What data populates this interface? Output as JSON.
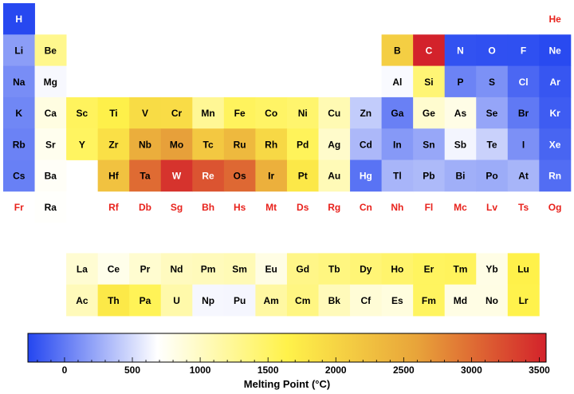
{
  "chart_data": {
    "type": "heatmap",
    "title": "",
    "colorbar": {
      "label": "Melting Point (°C)",
      "range": [
        -270,
        3550
      ],
      "ticks": [
        0,
        500,
        1000,
        1500,
        2000,
        2500,
        3000,
        3500
      ],
      "colormap": [
        "#2446f0",
        "#ffffff",
        "#fff24a",
        "#e8a43a",
        "#d3222b"
      ]
    },
    "missing_color": "#e8221c",
    "elements": [
      {
        "symbol": "H",
        "row": 1,
        "col": 1,
        "value": -259
      },
      {
        "symbol": "He",
        "row": 1,
        "col": 18,
        "value": null
      },
      {
        "symbol": "Li",
        "row": 2,
        "col": 1,
        "value": 181
      },
      {
        "symbol": "Be",
        "row": 2,
        "col": 2,
        "value": 1287
      },
      {
        "symbol": "B",
        "row": 2,
        "col": 13,
        "value": 2076
      },
      {
        "symbol": "C",
        "row": 2,
        "col": 14,
        "value": 3550
      },
      {
        "symbol": "N",
        "row": 2,
        "col": 15,
        "value": -210
      },
      {
        "symbol": "O",
        "row": 2,
        "col": 16,
        "value": -218
      },
      {
        "symbol": "F",
        "row": 2,
        "col": 17,
        "value": -220
      },
      {
        "symbol": "Ne",
        "row": 2,
        "col": 18,
        "value": -249
      },
      {
        "symbol": "Na",
        "row": 3,
        "col": 1,
        "value": 98
      },
      {
        "symbol": "Mg",
        "row": 3,
        "col": 2,
        "value": 650
      },
      {
        "symbol": "Al",
        "row": 3,
        "col": 13,
        "value": 660
      },
      {
        "symbol": "Si",
        "row": 3,
        "col": 14,
        "value": 1414
      },
      {
        "symbol": "P",
        "row": 3,
        "col": 15,
        "value": 44
      },
      {
        "symbol": "S",
        "row": 3,
        "col": 16,
        "value": 115
      },
      {
        "symbol": "Cl",
        "row": 3,
        "col": 17,
        "value": -102
      },
      {
        "symbol": "Ar",
        "row": 3,
        "col": 18,
        "value": -189
      },
      {
        "symbol": "K",
        "row": 4,
        "col": 1,
        "value": 63
      },
      {
        "symbol": "Ca",
        "row": 4,
        "col": 2,
        "value": 842
      },
      {
        "symbol": "Sc",
        "row": 4,
        "col": 3,
        "value": 1541
      },
      {
        "symbol": "Ti",
        "row": 4,
        "col": 4,
        "value": 1668
      },
      {
        "symbol": "V",
        "row": 4,
        "col": 5,
        "value": 1910
      },
      {
        "symbol": "Cr",
        "row": 4,
        "col": 6,
        "value": 1907
      },
      {
        "symbol": "Mn",
        "row": 4,
        "col": 7,
        "value": 1246
      },
      {
        "symbol": "Fe",
        "row": 4,
        "col": 8,
        "value": 1538
      },
      {
        "symbol": "Co",
        "row": 4,
        "col": 9,
        "value": 1495
      },
      {
        "symbol": "Ni",
        "row": 4,
        "col": 10,
        "value": 1455
      },
      {
        "symbol": "Cu",
        "row": 4,
        "col": 11,
        "value": 1085
      },
      {
        "symbol": "Zn",
        "row": 4,
        "col": 12,
        "value": 420
      },
      {
        "symbol": "Ga",
        "row": 4,
        "col": 13,
        "value": 30
      },
      {
        "symbol": "Ge",
        "row": 4,
        "col": 14,
        "value": 938
      },
      {
        "symbol": "As",
        "row": 4,
        "col": 15,
        "value": 817
      },
      {
        "symbol": "Se",
        "row": 4,
        "col": 16,
        "value": 221
      },
      {
        "symbol": "Br",
        "row": 4,
        "col": 17,
        "value": -7
      },
      {
        "symbol": "Kr",
        "row": 4,
        "col": 18,
        "value": -157
      },
      {
        "symbol": "Rb",
        "row": 5,
        "col": 1,
        "value": 39
      },
      {
        "symbol": "Sr",
        "row": 5,
        "col": 2,
        "value": 777
      },
      {
        "symbol": "Y",
        "row": 5,
        "col": 3,
        "value": 1526
      },
      {
        "symbol": "Zr",
        "row": 5,
        "col": 4,
        "value": 1855
      },
      {
        "symbol": "Nb",
        "row": 5,
        "col": 5,
        "value": 2477
      },
      {
        "symbol": "Mo",
        "row": 5,
        "col": 6,
        "value": 2623
      },
      {
        "symbol": "Tc",
        "row": 5,
        "col": 7,
        "value": 2157
      },
      {
        "symbol": "Ru",
        "row": 5,
        "col": 8,
        "value": 2334
      },
      {
        "symbol": "Rh",
        "row": 5,
        "col": 9,
        "value": 1964
      },
      {
        "symbol": "Pd",
        "row": 5,
        "col": 10,
        "value": 1555
      },
      {
        "symbol": "Ag",
        "row": 5,
        "col": 11,
        "value": 962
      },
      {
        "symbol": "Cd",
        "row": 5,
        "col": 12,
        "value": 321
      },
      {
        "symbol": "In",
        "row": 5,
        "col": 13,
        "value": 157
      },
      {
        "symbol": "Sn",
        "row": 5,
        "col": 14,
        "value": 232
      },
      {
        "symbol": "Sb",
        "row": 5,
        "col": 15,
        "value": 631
      },
      {
        "symbol": "Te",
        "row": 5,
        "col": 16,
        "value": 450
      },
      {
        "symbol": "I",
        "row": 5,
        "col": 17,
        "value": 114
      },
      {
        "symbol": "Xe",
        "row": 5,
        "col": 18,
        "value": -112
      },
      {
        "symbol": "Cs",
        "row": 6,
        "col": 1,
        "value": 28
      },
      {
        "symbol": "Ba",
        "row": 6,
        "col": 2,
        "value": 727
      },
      {
        "symbol": "Hf",
        "row": 6,
        "col": 4,
        "value": 2233
      },
      {
        "symbol": "Ta",
        "row": 6,
        "col": 5,
        "value": 3017
      },
      {
        "symbol": "W",
        "row": 6,
        "col": 6,
        "value": 3422
      },
      {
        "symbol": "Re",
        "row": 6,
        "col": 7,
        "value": 3186
      },
      {
        "symbol": "Os",
        "row": 6,
        "col": 8,
        "value": 3033
      },
      {
        "symbol": "Ir",
        "row": 6,
        "col": 9,
        "value": 2446
      },
      {
        "symbol": "Pt",
        "row": 6,
        "col": 10,
        "value": 1768
      },
      {
        "symbol": "Au",
        "row": 6,
        "col": 11,
        "value": 1064
      },
      {
        "symbol": "Hg",
        "row": 6,
        "col": 12,
        "value": -39
      },
      {
        "symbol": "Tl",
        "row": 6,
        "col": 13,
        "value": 304
      },
      {
        "symbol": "Pb",
        "row": 6,
        "col": 14,
        "value": 327
      },
      {
        "symbol": "Bi",
        "row": 6,
        "col": 15,
        "value": 271
      },
      {
        "symbol": "Po",
        "row": 6,
        "col": 16,
        "value": 254
      },
      {
        "symbol": "At",
        "row": 6,
        "col": 17,
        "value": 302
      },
      {
        "symbol": "Rn",
        "row": 6,
        "col": 18,
        "value": -71
      },
      {
        "symbol": "Fr",
        "row": 7,
        "col": 1,
        "value": null
      },
      {
        "symbol": "Ra",
        "row": 7,
        "col": 2,
        "value": 700
      },
      {
        "symbol": "Rf",
        "row": 7,
        "col": 4,
        "value": null
      },
      {
        "symbol": "Db",
        "row": 7,
        "col": 5,
        "value": null
      },
      {
        "symbol": "Sg",
        "row": 7,
        "col": 6,
        "value": null
      },
      {
        "symbol": "Bh",
        "row": 7,
        "col": 7,
        "value": null
      },
      {
        "symbol": "Hs",
        "row": 7,
        "col": 8,
        "value": null
      },
      {
        "symbol": "Mt",
        "row": 7,
        "col": 9,
        "value": null
      },
      {
        "symbol": "Ds",
        "row": 7,
        "col": 10,
        "value": null
      },
      {
        "symbol": "Rg",
        "row": 7,
        "col": 11,
        "value": null
      },
      {
        "symbol": "Cn",
        "row": 7,
        "col": 12,
        "value": null
      },
      {
        "symbol": "Nh",
        "row": 7,
        "col": 13,
        "value": null
      },
      {
        "symbol": "Fl",
        "row": 7,
        "col": 14,
        "value": null
      },
      {
        "symbol": "Mc",
        "row": 7,
        "col": 15,
        "value": null
      },
      {
        "symbol": "Lv",
        "row": 7,
        "col": 16,
        "value": null
      },
      {
        "symbol": "Ts",
        "row": 7,
        "col": 17,
        "value": null
      },
      {
        "symbol": "Og",
        "row": 7,
        "col": 18,
        "value": null
      },
      {
        "symbol": "La",
        "row": 9,
        "col": 3,
        "value": 920
      },
      {
        "symbol": "Ce",
        "row": 9,
        "col": 4,
        "value": 795
      },
      {
        "symbol": "Pr",
        "row": 9,
        "col": 5,
        "value": 935
      },
      {
        "symbol": "Nd",
        "row": 9,
        "col": 6,
        "value": 1024
      },
      {
        "symbol": "Pm",
        "row": 9,
        "col": 7,
        "value": 1042
      },
      {
        "symbol": "Sm",
        "row": 9,
        "col": 8,
        "value": 1072
      },
      {
        "symbol": "Eu",
        "row": 9,
        "col": 9,
        "value": 826
      },
      {
        "symbol": "Gd",
        "row": 9,
        "col": 10,
        "value": 1312
      },
      {
        "symbol": "Tb",
        "row": 9,
        "col": 11,
        "value": 1356
      },
      {
        "symbol": "Dy",
        "row": 9,
        "col": 12,
        "value": 1407
      },
      {
        "symbol": "Ho",
        "row": 9,
        "col": 13,
        "value": 1461
      },
      {
        "symbol": "Er",
        "row": 9,
        "col": 14,
        "value": 1529
      },
      {
        "symbol": "Tm",
        "row": 9,
        "col": 15,
        "value": 1545
      },
      {
        "symbol": "Yb",
        "row": 9,
        "col": 16,
        "value": 824
      },
      {
        "symbol": "Lu",
        "row": 9,
        "col": 17,
        "value": 1652
      },
      {
        "symbol": "Ac",
        "row": 10,
        "col": 3,
        "value": 1050
      },
      {
        "symbol": "Th",
        "row": 10,
        "col": 4,
        "value": 1750
      },
      {
        "symbol": "Pa",
        "row": 10,
        "col": 5,
        "value": 1572
      },
      {
        "symbol": "U",
        "row": 10,
        "col": 6,
        "value": 1135
      },
      {
        "symbol": "Np",
        "row": 10,
        "col": 7,
        "value": 644
      },
      {
        "symbol": "Pu",
        "row": 10,
        "col": 8,
        "value": 640
      },
      {
        "symbol": "Am",
        "row": 10,
        "col": 9,
        "value": 1176
      },
      {
        "symbol": "Cm",
        "row": 10,
        "col": 10,
        "value": 1345
      },
      {
        "symbol": "Bk",
        "row": 10,
        "col": 11,
        "value": 1050
      },
      {
        "symbol": "Cf",
        "row": 10,
        "col": 12,
        "value": 900
      },
      {
        "symbol": "Es",
        "row": 10,
        "col": 13,
        "value": 860
      },
      {
        "symbol": "Fm",
        "row": 10,
        "col": 14,
        "value": 1527
      },
      {
        "symbol": "Md",
        "row": 10,
        "col": 15,
        "value": 827
      },
      {
        "symbol": "No",
        "row": 10,
        "col": 16,
        "value": 827
      },
      {
        "symbol": "Lr",
        "row": 10,
        "col": 17,
        "value": 1627
      }
    ]
  }
}
